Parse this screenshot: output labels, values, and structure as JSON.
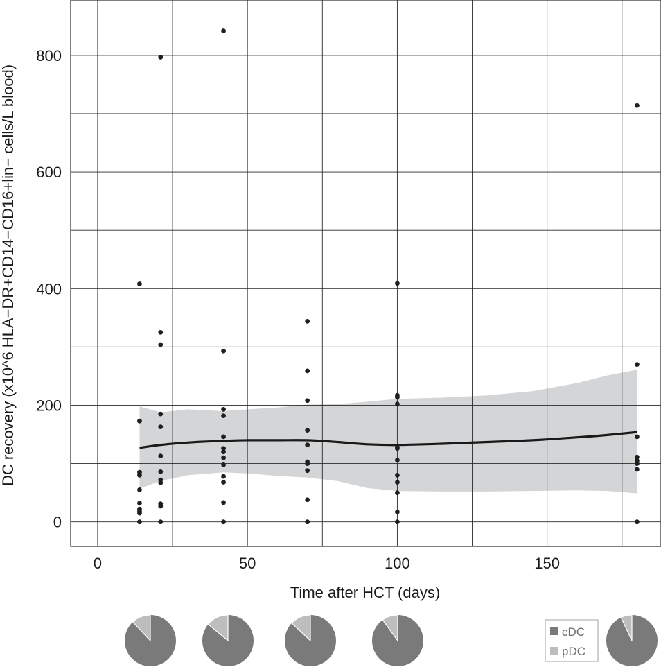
{
  "chart_data": {
    "type": "scatter",
    "title": "",
    "xlabel": "Time after HCT (days)",
    "ylabel": "DC recovery (x10^6 HLA−DR+CD14−CD16+lin− cells/L blood)",
    "xlim": [
      -9,
      188
    ],
    "ylim": [
      -42,
      895
    ],
    "x_ticks": [
      0,
      50,
      100,
      150
    ],
    "x_tick_labels": [
      "0",
      "50",
      "100",
      "150"
    ],
    "y_ticks": [
      0,
      200,
      400,
      600,
      800
    ],
    "y_tick_labels": [
      "0",
      "200",
      "400",
      "600",
      "800"
    ],
    "grid": true,
    "series": [
      {
        "name": "DC recovery",
        "points": [
          [
            14,
            408
          ],
          [
            14,
            173
          ],
          [
            14,
            85
          ],
          [
            14,
            80
          ],
          [
            14,
            55
          ],
          [
            14,
            32
          ],
          [
            14,
            22
          ],
          [
            14,
            18
          ],
          [
            14,
            15
          ],
          [
            14,
            0
          ],
          [
            21,
            797
          ],
          [
            21,
            325
          ],
          [
            21,
            304
          ],
          [
            21,
            185
          ],
          [
            21,
            163
          ],
          [
            21,
            113
          ],
          [
            21,
            86
          ],
          [
            21,
            72
          ],
          [
            21,
            67
          ],
          [
            21,
            31
          ],
          [
            21,
            27
          ],
          [
            21,
            0
          ],
          [
            42,
            842
          ],
          [
            42,
            293
          ],
          [
            42,
            193
          ],
          [
            42,
            182
          ],
          [
            42,
            146
          ],
          [
            42,
            126
          ],
          [
            42,
            120
          ],
          [
            42,
            110
          ],
          [
            42,
            98
          ],
          [
            42,
            78
          ],
          [
            42,
            68
          ],
          [
            42,
            33
          ],
          [
            42,
            0
          ],
          [
            70,
            344
          ],
          [
            70,
            259
          ],
          [
            70,
            208
          ],
          [
            70,
            157
          ],
          [
            70,
            132
          ],
          [
            70,
            103
          ],
          [
            70,
            100
          ],
          [
            70,
            88
          ],
          [
            70,
            38
          ],
          [
            70,
            0
          ],
          [
            100,
            409
          ],
          [
            100,
            217
          ],
          [
            100,
            214
          ],
          [
            100,
            202
          ],
          [
            100,
            128
          ],
          [
            100,
            126
          ],
          [
            100,
            106
          ],
          [
            100,
            80
          ],
          [
            100,
            68
          ],
          [
            100,
            50
          ],
          [
            100,
            17
          ],
          [
            100,
            0
          ],
          [
            180,
            714
          ],
          [
            180,
            270
          ],
          [
            180,
            146
          ],
          [
            180,
            111
          ],
          [
            180,
            105
          ],
          [
            180,
            100
          ],
          [
            180,
            90
          ],
          [
            180,
            0
          ]
        ]
      }
    ],
    "smooth": {
      "name": "loess fit",
      "x": [
        14,
        21,
        30,
        42,
        50,
        60,
        70,
        80,
        90,
        100,
        115,
        130,
        145,
        160,
        170,
        180
      ],
      "y": [
        127,
        132,
        136,
        139,
        140,
        140,
        140,
        137,
        133,
        132,
        134,
        137,
        140,
        145,
        149,
        154
      ],
      "lower": [
        57,
        70,
        80,
        85,
        83,
        79,
        76,
        70,
        58,
        53,
        52,
        52,
        53,
        54,
        53,
        49
      ],
      "upper": [
        198,
        188,
        193,
        190,
        193,
        196,
        201,
        202,
        206,
        211,
        213,
        217,
        224,
        238,
        251,
        261
      ]
    },
    "pies": [
      {
        "x": 18,
        "cDC": 0.88,
        "pDC": 0.12
      },
      {
        "x": 42,
        "cDC": 0.86,
        "pDC": 0.14
      },
      {
        "x": 70,
        "cDC": 0.87,
        "pDC": 0.13
      },
      {
        "x": 100,
        "cDC": 0.9,
        "pDC": 0.1
      },
      {
        "x": 180,
        "cDC": 0.93,
        "pDC": 0.07
      }
    ],
    "legend": {
      "position": "bottom-right",
      "entries": [
        {
          "label": "cDC",
          "color": "#7a7a7a"
        },
        {
          "label": "pDC",
          "color": "#bdbdbd"
        }
      ]
    }
  },
  "colors": {
    "point": "#1f1f1f",
    "line": "#1a1a1a",
    "band": "#d4d5d7",
    "grid": "#2a2a2a",
    "cDC": "#7a7a7a",
    "pDC": "#bdbdbd"
  }
}
